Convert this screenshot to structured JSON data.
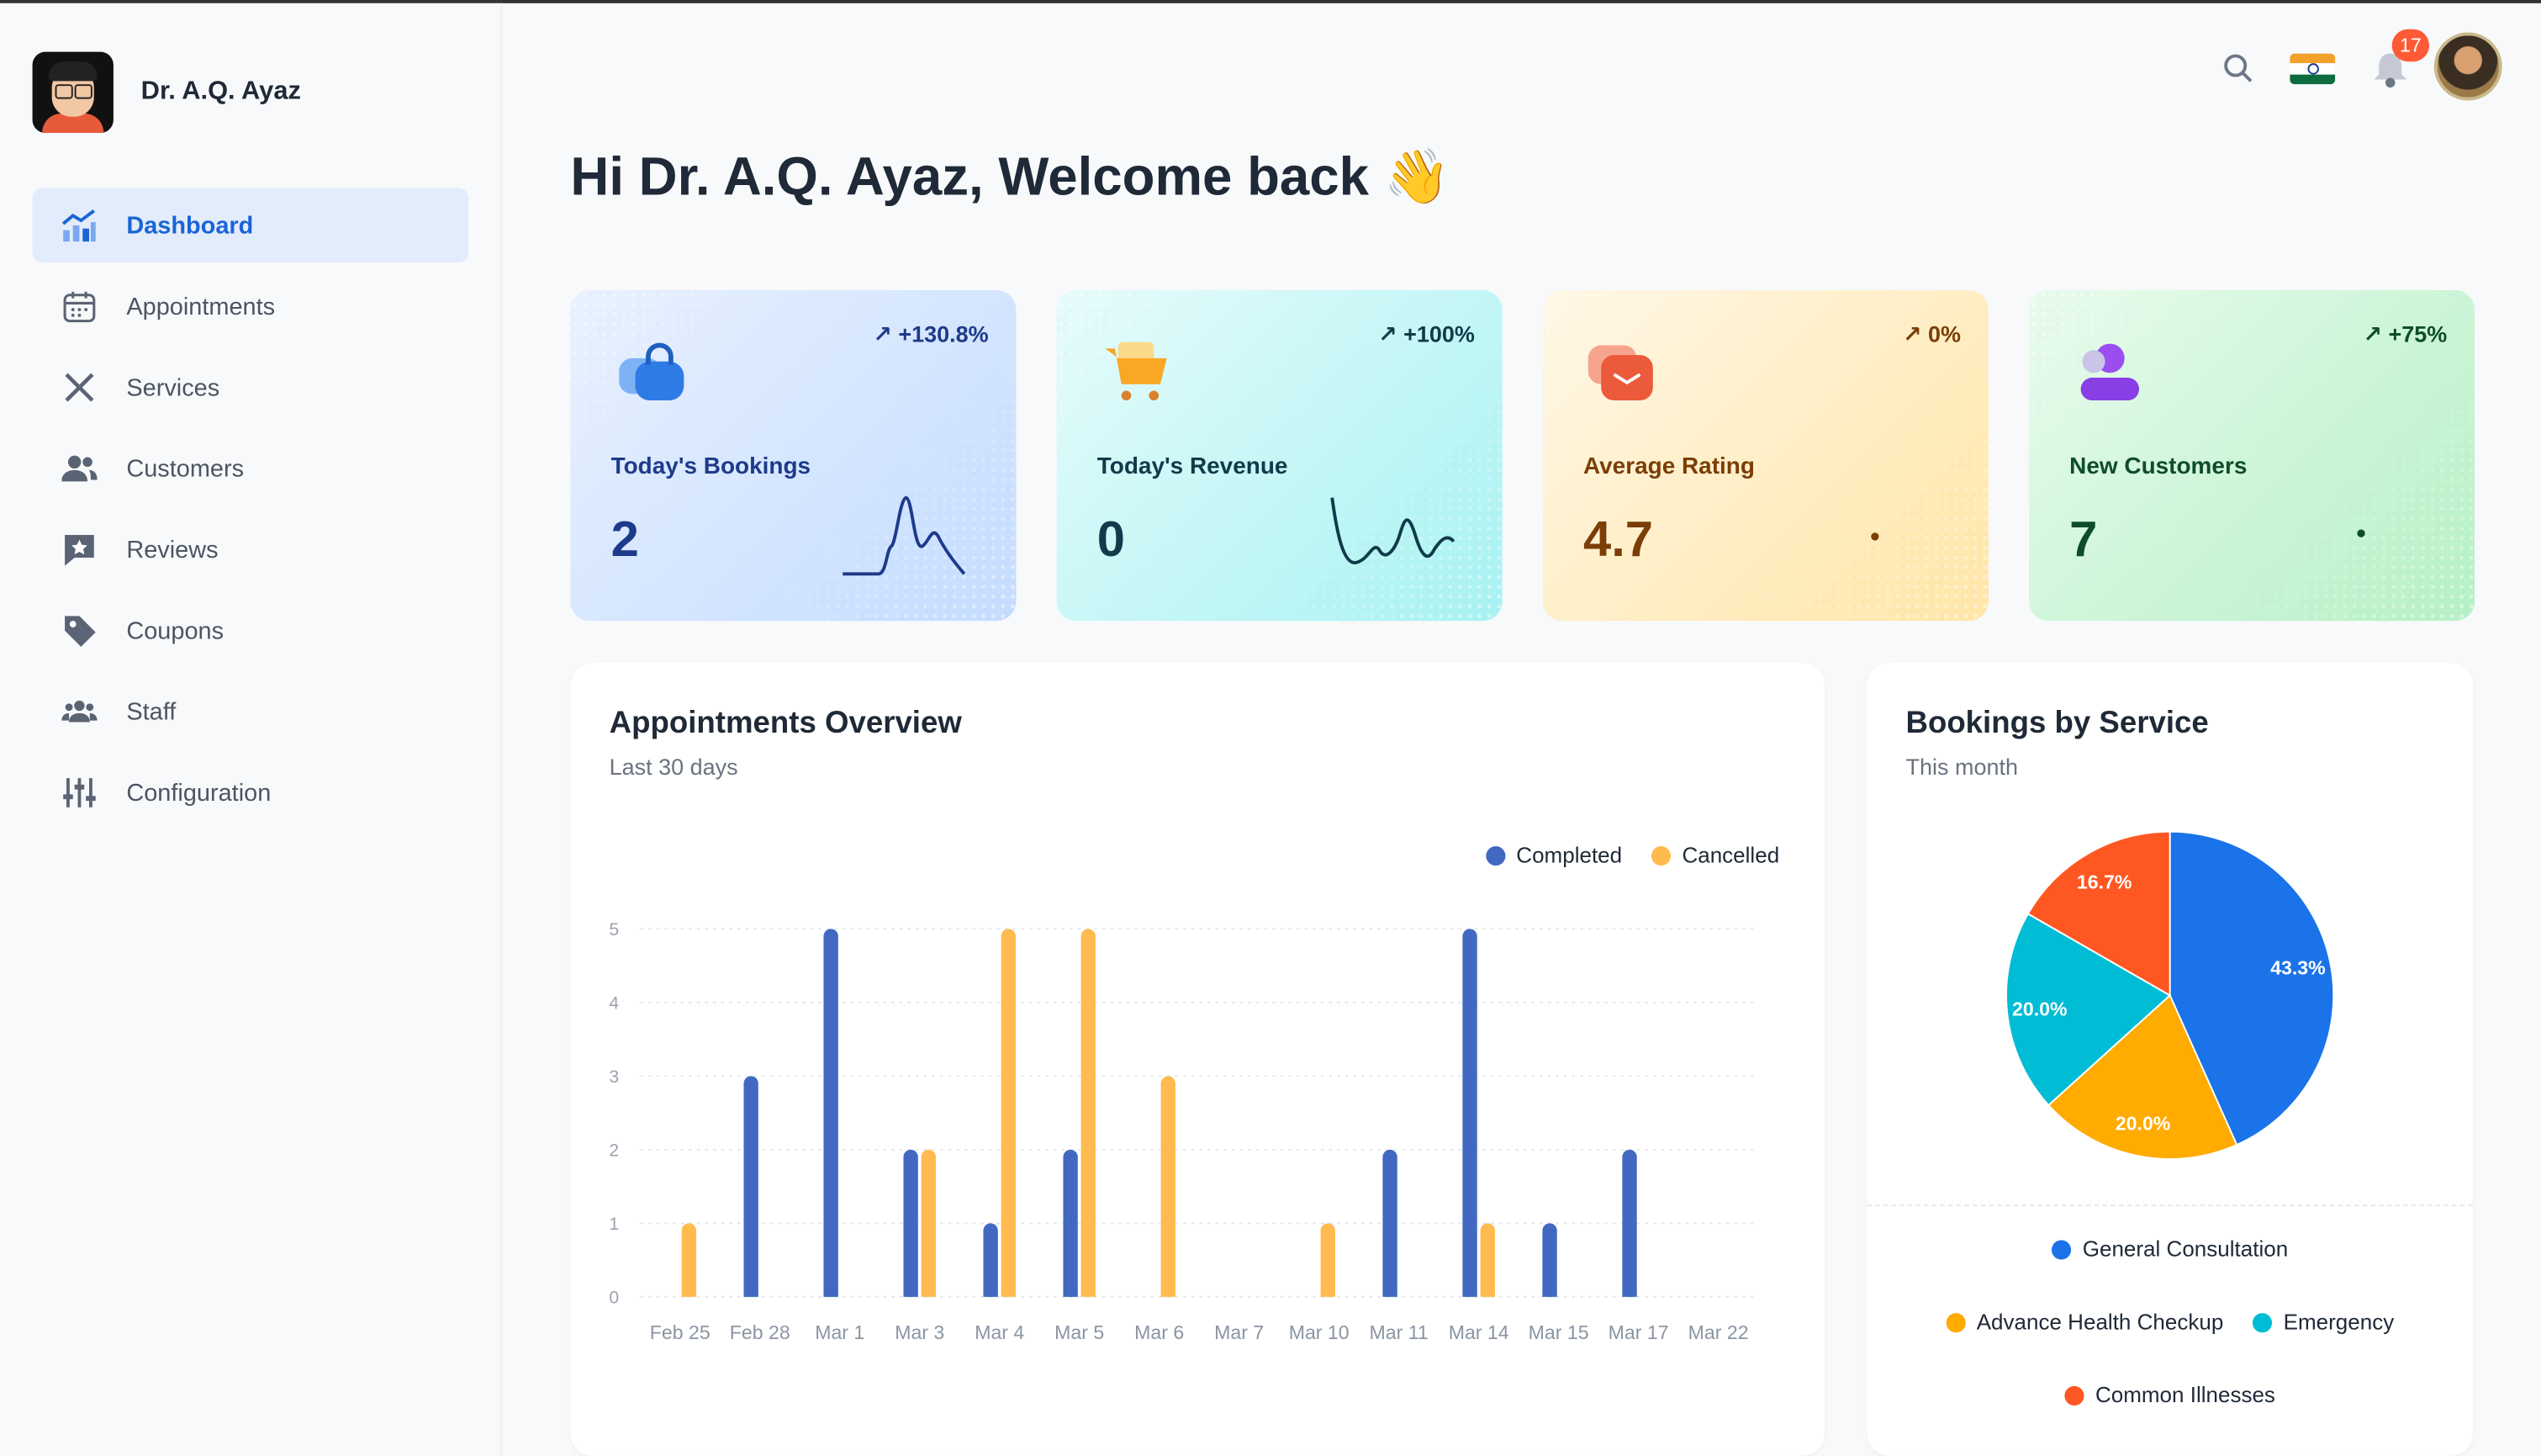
{
  "user": {
    "name": "Dr. A.Q. Ayaz"
  },
  "sidebar": {
    "items": [
      {
        "label": "Dashboard",
        "icon": "chart-icon",
        "active": true
      },
      {
        "label": "Appointments",
        "icon": "calendar-icon"
      },
      {
        "label": "Services",
        "icon": "tools-icon"
      },
      {
        "label": "Customers",
        "icon": "users-icon"
      },
      {
        "label": "Reviews",
        "icon": "star-icon"
      },
      {
        "label": "Coupons",
        "icon": "tag-icon"
      },
      {
        "label": "Staff",
        "icon": "staff-icon"
      },
      {
        "label": "Configuration",
        "icon": "sliders-icon"
      }
    ]
  },
  "topbar": {
    "notification_count": "17"
  },
  "greeting": "Hi Dr. A.Q. Ayaz, Welcome back",
  "greeting_emoji": "👋",
  "cards": [
    {
      "label": "Today's Bookings",
      "value": "2",
      "change": "+130.8%",
      "color": "#1e3a8a"
    },
    {
      "label": "Today's Revenue",
      "value": "0",
      "change": "+100%",
      "color": "#0f3b4a"
    },
    {
      "label": "Average Rating",
      "value": "4.7",
      "change": "0%",
      "color": "#7a3e06"
    },
    {
      "label": "New Customers",
      "value": "7",
      "change": "+75%",
      "color": "#0f4d2a"
    }
  ],
  "appointments": {
    "title": "Appointments Overview",
    "subtitle": "Last 30 days"
  },
  "bookings": {
    "title": "Bookings by Service",
    "subtitle": "This month"
  },
  "chart_data": [
    {
      "type": "bar",
      "title": "Appointments Overview",
      "categories": [
        "Feb 25",
        "Feb 28",
        "Mar 1",
        "Mar 3",
        "Mar 4",
        "Mar 5",
        "Mar 6",
        "Mar 7",
        "Mar 10",
        "Mar 11",
        "Mar 14",
        "Mar 15",
        "Mar 17",
        "Mar 22"
      ],
      "series": [
        {
          "name": "Completed",
          "color": "#4169c1",
          "values": [
            0,
            3,
            5,
            2,
            1,
            2,
            0,
            0,
            0,
            2,
            5,
            1,
            2,
            0
          ]
        },
        {
          "name": "Cancelled",
          "color": "#ffbb4f",
          "values": [
            1,
            0,
            0,
            2,
            5,
            5,
            3,
            0,
            1,
            0,
            1,
            0,
            0,
            0
          ]
        }
      ],
      "yticks": [
        "0",
        "1",
        "2",
        "3",
        "4",
        "5"
      ],
      "ylim": [
        0,
        5
      ],
      "legend": "top-right",
      "grid": true
    },
    {
      "type": "pie",
      "title": "Bookings by Service",
      "slices": [
        {
          "name": "General Consultation",
          "value": 43.3,
          "label": "43.3%",
          "color": "#1a73e8"
        },
        {
          "name": "Advance Health Checkup",
          "value": 20.0,
          "label": "20.0%",
          "color": "#ffab00"
        },
        {
          "name": "Emergency",
          "value": 20.0,
          "label": "20.0%",
          "color": "#00bcd4"
        },
        {
          "name": "Common Illnesses",
          "value": 16.7,
          "label": "16.7%",
          "color": "#ff5722"
        }
      ],
      "legend": "bottom"
    }
  ]
}
